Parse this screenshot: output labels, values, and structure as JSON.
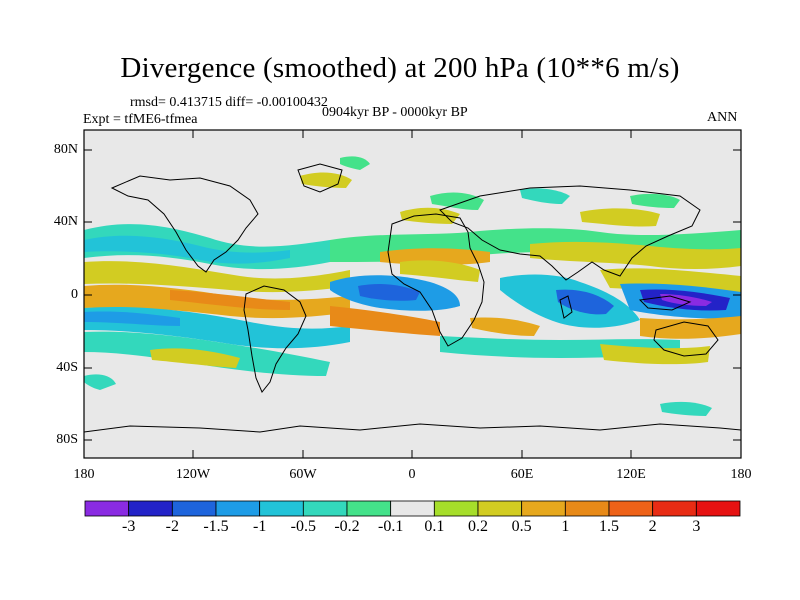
{
  "title": "Divergence (smoothed) at 200 hPa (10**6 m/s)",
  "stats": "rmsd= 0.413715 diff= -0.00100432",
  "experiment": "Expt = tfME6-tfmea",
  "period": "0904kyr BP - 0000kyr BP",
  "season": "ANN",
  "y_ticks": [
    "80N",
    "40N",
    "0",
    "40S",
    "80S"
  ],
  "x_ticks": [
    "180",
    "120W",
    "60W",
    "0",
    "60E",
    "120E",
    "180"
  ],
  "colorbar": {
    "labels": [
      "-3",
      "-2",
      "-1.5",
      "-1",
      "-0.5",
      "-0.2",
      "-0.1",
      "0.1",
      "0.2",
      "0.5",
      "1",
      "1.5",
      "2",
      "3"
    ],
    "colors": [
      "#8a2be2",
      "#2323c8",
      "#1e64dc",
      "#1e9ce6",
      "#22c3d8",
      "#33d8bc",
      "#44e28a",
      "#e8e8e8",
      "#a6de2a",
      "#d2cc22",
      "#e6a81e",
      "#e88a18",
      "#ee6218",
      "#e82c14",
      "#e61212"
    ]
  },
  "colors": {
    "background_field": "#e8e8e8",
    "coast": "#000000"
  }
}
